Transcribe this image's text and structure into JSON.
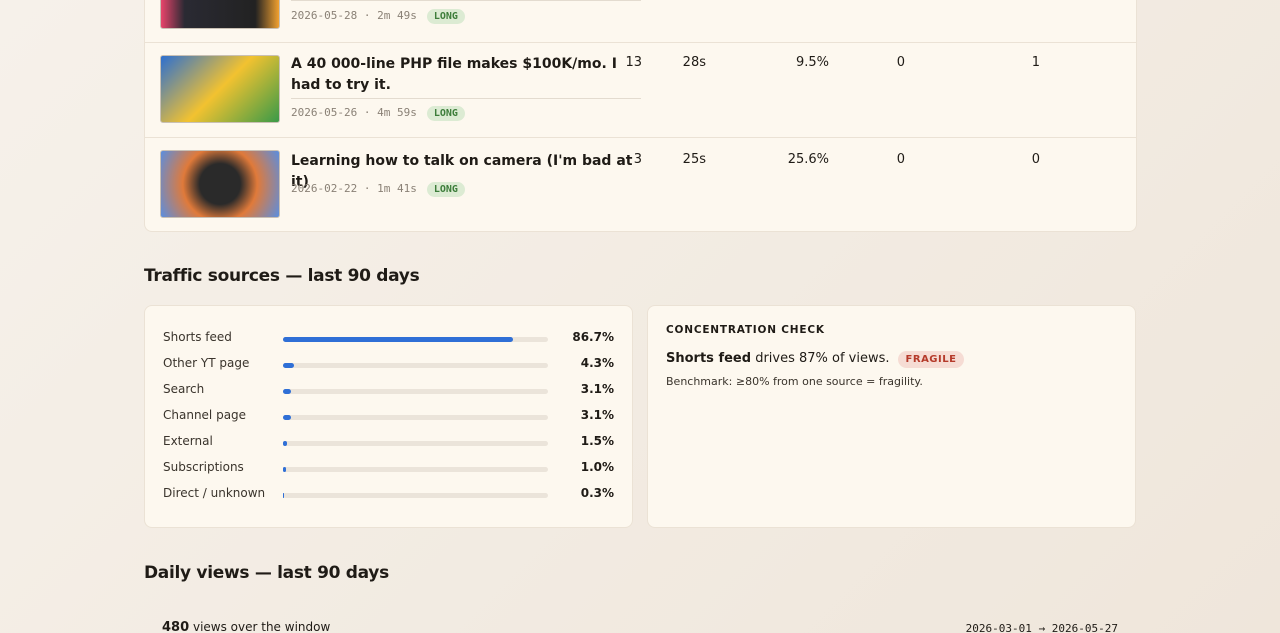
{
  "videos": [
    {
      "meta": "2026-05-28 · 2m 49s",
      "badge": "LONG"
    },
    {
      "title": "A 40 000-line PHP file makes $100K/mo. I had to try it.",
      "meta": "2026-05-26 · 4m 59s",
      "badge": "LONG",
      "stats": [
        "13",
        "28s",
        "9.5%",
        "0",
        "1"
      ]
    },
    {
      "title": "Learning how to talk on camera (I'm bad at it)",
      "meta": "2026-02-22 · 1m 41s",
      "badge": "LONG",
      "stats": [
        "3",
        "25s",
        "25.6%",
        "0",
        "0"
      ]
    }
  ],
  "traffic": {
    "heading": "Traffic sources — last 90 days",
    "scale_max": 100,
    "sources": [
      {
        "name": "Shorts feed",
        "value": 86.7,
        "label": "86.7%"
      },
      {
        "name": "Other YT page",
        "value": 4.3,
        "label": "4.3%"
      },
      {
        "name": "Search",
        "value": 3.1,
        "label": "3.1%"
      },
      {
        "name": "Channel page",
        "value": 3.1,
        "label": "3.1%"
      },
      {
        "name": "External",
        "value": 1.5,
        "label": "1.5%"
      },
      {
        "name": "Subscriptions",
        "value": 1.0,
        "label": "1.0%"
      },
      {
        "name": "Direct / unknown",
        "value": 0.3,
        "label": "0.3%"
      }
    ],
    "check": {
      "title": "CONCENTRATION CHECK",
      "source": "Shorts feed",
      "text": "drives 87% of views.",
      "badge": "FRAGILE",
      "benchmark": "Benchmark: ≥80% from one source = fragility."
    }
  },
  "daily": {
    "heading": "Daily views — last 90 days",
    "total": "480",
    "total_text": "views over the window",
    "range": "2026-03-01 → 2026-05-27"
  }
}
